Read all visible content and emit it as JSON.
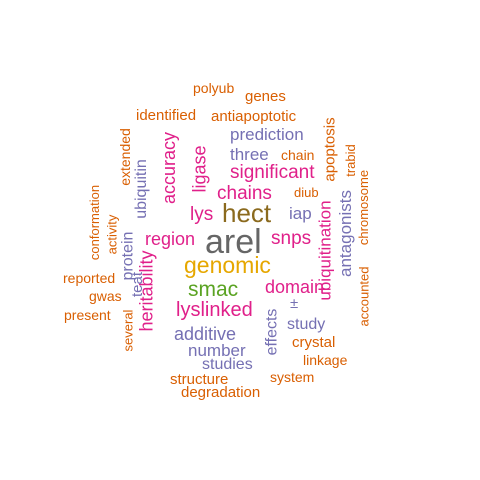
{
  "colors": {
    "gray": "#666666",
    "olive": "#8b6a1e",
    "gold": "#e6a700",
    "green": "#5aa322",
    "magenta": "#e0208a",
    "purple": "#7570b3",
    "orange": "#d95f02"
  },
  "words": [
    {
      "text": "arel",
      "color": "gray"
    },
    {
      "text": "hect",
      "color": "olive"
    },
    {
      "text": "genomic",
      "color": "gold"
    },
    {
      "text": "smac",
      "color": "green"
    },
    {
      "text": "lys",
      "color": "magenta"
    },
    {
      "text": "snps",
      "color": "magenta"
    },
    {
      "text": "region",
      "color": "magenta"
    },
    {
      "text": "significant",
      "color": "magenta"
    },
    {
      "text": "chains",
      "color": "magenta"
    },
    {
      "text": "domain",
      "color": "magenta"
    },
    {
      "text": "lyslinked",
      "color": "magenta"
    },
    {
      "text": "heritability",
      "color": "magenta"
    },
    {
      "text": "accuracy",
      "color": "magenta"
    },
    {
      "text": "ligase",
      "color": "magenta"
    },
    {
      "text": "ubiquitination",
      "color": "magenta"
    },
    {
      "text": "prediction",
      "color": "purple"
    },
    {
      "text": "three",
      "color": "purple"
    },
    {
      "text": "iap",
      "color": "purple"
    },
    {
      "text": "antagonists",
      "color": "purple"
    },
    {
      "text": "ubiquitin",
      "color": "purple"
    },
    {
      "text": "protein",
      "color": "purple"
    },
    {
      "text": "teat",
      "color": "purple"
    },
    {
      "text": "additive",
      "color": "purple"
    },
    {
      "text": "number",
      "color": "purple"
    },
    {
      "text": "studies",
      "color": "purple"
    },
    {
      "text": "effects",
      "color": "purple"
    },
    {
      "text": "study",
      "color": "purple"
    },
    {
      "text": "±",
      "color": "purple"
    },
    {
      "text": "polyub",
      "color": "orange"
    },
    {
      "text": "genes",
      "color": "orange"
    },
    {
      "text": "identified",
      "color": "orange"
    },
    {
      "text": "antiapoptotic",
      "color": "orange"
    },
    {
      "text": "apoptosis",
      "color": "orange"
    },
    {
      "text": "trabid",
      "color": "orange"
    },
    {
      "text": "chromosome",
      "color": "orange"
    },
    {
      "text": "extended",
      "color": "orange"
    },
    {
      "text": "chain",
      "color": "orange"
    },
    {
      "text": "diub",
      "color": "orange"
    },
    {
      "text": "conformation",
      "color": "orange"
    },
    {
      "text": "activity",
      "color": "orange"
    },
    {
      "text": "reported",
      "color": "orange"
    },
    {
      "text": "gwas",
      "color": "orange"
    },
    {
      "text": "present",
      "color": "orange"
    },
    {
      "text": "several",
      "color": "orange"
    },
    {
      "text": "accounted",
      "color": "orange"
    },
    {
      "text": "crystal",
      "color": "orange"
    },
    {
      "text": "linkage",
      "color": "orange"
    },
    {
      "text": "system",
      "color": "orange"
    },
    {
      "text": "structure",
      "color": "orange"
    },
    {
      "text": "degradation",
      "color": "orange"
    }
  ]
}
